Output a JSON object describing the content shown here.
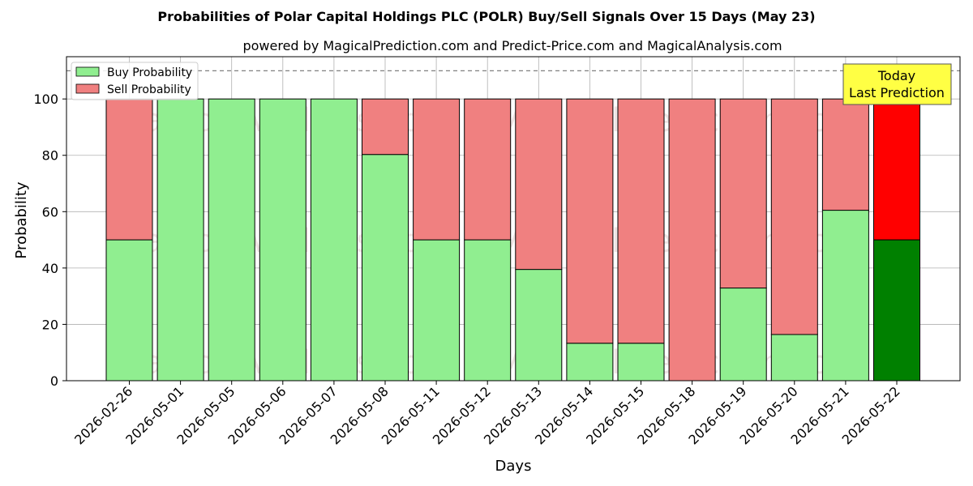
{
  "chart_data": {
    "type": "bar",
    "stacked": true,
    "title": "Probabilities of Polar Capital Holdings PLC (POLR) Buy/Sell Signals Over 15 Days (May 23)",
    "subtitle": "powered by MagicalPrediction.com and Predict-Price.com and MagicalAnalysis.com",
    "xlabel": "Days",
    "ylabel": "Probability",
    "ylim": [
      0,
      115
    ],
    "yticks": [
      "0",
      "20",
      "40",
      "60",
      "80",
      "100"
    ],
    "grid": true,
    "legend_position": "top-left",
    "reference_line": 110,
    "categories": [
      "2026-02-26",
      "2026-05-01",
      "2026-05-05",
      "2026-05-06",
      "2026-05-07",
      "2026-05-08",
      "2026-05-11",
      "2026-05-12",
      "2026-05-13",
      "2026-05-14",
      "2026-05-15",
      "2026-05-18",
      "2026-05-19",
      "2026-05-20",
      "2026-05-21",
      "2026-05-22"
    ],
    "series": [
      {
        "name": "Buy Probability",
        "color": "#90ee90",
        "highlight_color": "#008000",
        "values": [
          50,
          100,
          100,
          100,
          100,
          80.3,
          50,
          50,
          39.5,
          13.3,
          13.3,
          0,
          32.9,
          16.4,
          60.5,
          50
        ]
      },
      {
        "name": "Sell Probability",
        "color": "#f08080",
        "highlight_color": "#ff0000",
        "values": [
          50,
          0,
          0,
          0,
          0,
          19.7,
          50,
          50,
          60.5,
          86.7,
          86.7,
          100,
          67.1,
          83.6,
          39.5,
          50
        ]
      }
    ],
    "highlight_index": 15,
    "annotation": {
      "line1": "Today",
      "line2": "Last Prediction",
      "bg_color": "#ffff44"
    },
    "watermarks": [
      "MagicalAnalysis.com",
      "MagicalPrediction.com"
    ]
  }
}
